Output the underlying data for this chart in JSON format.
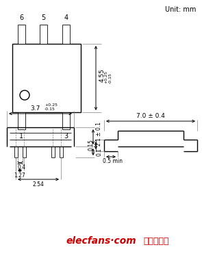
{
  "unit_label": "Unit: mm",
  "bg_color": "#ffffff",
  "line_color": "#000000",
  "pin_labels_top": [
    "6",
    "5",
    "4"
  ],
  "pin_labels_bottom": [
    "1",
    "3"
  ],
  "dim_height": "4.55",
  "dim_height_tol": "+0.25\n-0.15",
  "dim_width_top": "3.7",
  "dim_width_top_tol": "+0.25\n-0.15",
  "dim_21": "2.1 ± 0.1",
  "dim_01": "0.1",
  "dim_04": "0.4",
  "dim_015": "0.15",
  "dim_127": "1.27",
  "dim_254": "2.54",
  "dim_70": "7.0 ± 0.4",
  "dim_05min": "0.5 min",
  "watermark": "elecfans·com",
  "watermark2": "电子发烧友"
}
